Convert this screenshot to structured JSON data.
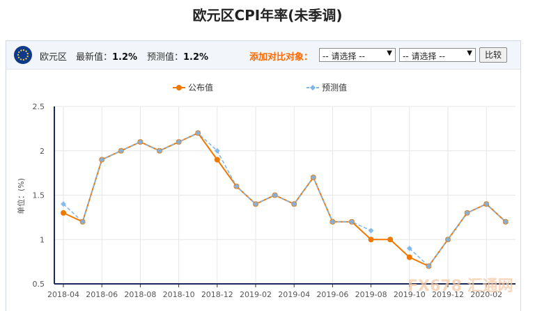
{
  "page": {
    "title": "欧元区CPI年率(未季调)"
  },
  "toolbar": {
    "region": "欧元区",
    "latest_label": "最新值：",
    "latest_value": "1.2%",
    "forecast_label": "预测值：",
    "forecast_value": "1.2%",
    "compare_label": "添加对比对象：",
    "select1_value": "-- 请选择 --",
    "select2_value": "-- 请选择 --",
    "compare_button": "比较"
  },
  "watermark": "FX678 汇通网",
  "chart_data": {
    "type": "line",
    "title": "",
    "xlabel": "",
    "ylabel": "单位：(%)",
    "ylim": [
      0.5,
      2.5
    ],
    "yticks": [
      "0.5",
      "1",
      "1.5",
      "2",
      "2.5"
    ],
    "categories": [
      "2018-04",
      "2018-05",
      "2018-06",
      "2018-07",
      "2018-08",
      "2018-09",
      "2018-10",
      "2018-11",
      "2018-12",
      "2019-01",
      "2019-02",
      "2019-03",
      "2019-04",
      "2019-05",
      "2019-06",
      "2019-07",
      "2019-08",
      "2019-09",
      "2019-10",
      "2019-11",
      "2019-12",
      "2020-01",
      "2020-02",
      "2020-03"
    ],
    "xticks": [
      "2018-04",
      "2018-06",
      "2018-08",
      "2018-10",
      "2018-12",
      "2019-02",
      "2019-04",
      "2019-06",
      "2019-08",
      "2019-10",
      "2019-12",
      "2020-02"
    ],
    "grid": true,
    "legend_position": "top",
    "series": [
      {
        "name": "公布值",
        "color": "#f07800",
        "style": "solid",
        "values": [
          1.3,
          1.2,
          1.9,
          2.0,
          2.1,
          2.0,
          2.1,
          2.2,
          1.9,
          1.6,
          1.4,
          1.5,
          1.4,
          1.7,
          1.2,
          1.2,
          1.0,
          1.0,
          0.8,
          0.7,
          1.0,
          1.3,
          1.4,
          1.2
        ]
      },
      {
        "name": "预测值",
        "color": "#7cb5ec",
        "style": "dashed",
        "values": [
          1.4,
          1.2,
          1.9,
          2.0,
          2.1,
          2.0,
          2.1,
          2.2,
          2.0,
          1.6,
          1.4,
          1.5,
          1.4,
          1.7,
          1.2,
          1.2,
          1.1,
          null,
          0.9,
          0.7,
          1.0,
          1.3,
          1.4,
          1.2
        ]
      }
    ]
  }
}
